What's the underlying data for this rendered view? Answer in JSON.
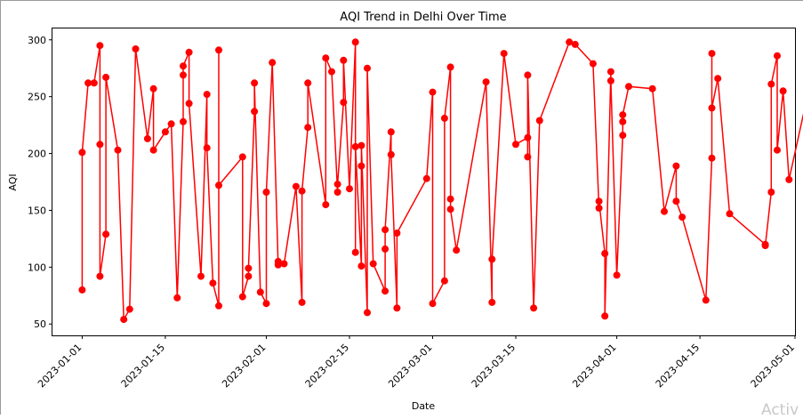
{
  "watermark": "Activ",
  "chart_data": {
    "type": "line",
    "title": "AQI Trend in Delhi Over Time",
    "xlabel": "Date",
    "ylabel": "AQI",
    "line_color": "#ff0000",
    "marker": "circle",
    "grid": false,
    "x_range": [
      "2022-12-27",
      "2023-05-01"
    ],
    "ylim": [
      40,
      310
    ],
    "x_ticks": [
      "2023-01-01",
      "2023-01-15",
      "2023-02-01",
      "2023-02-15",
      "2023-03-01",
      "2023-03-15",
      "2023-04-01",
      "2023-04-15",
      "2023-05-01"
    ],
    "y_ticks": [
      50,
      100,
      150,
      200,
      250,
      300
    ],
    "x": [
      "2023-01-01",
      "2023-01-01",
      "2023-01-02",
      "2023-01-03",
      "2023-01-04",
      "2023-01-04",
      "2023-01-04",
      "2023-01-05",
      "2023-01-05",
      "2023-01-07",
      "2023-01-08",
      "2023-01-09",
      "2023-01-10",
      "2023-01-12",
      "2023-01-13",
      "2023-01-13",
      "2023-01-15",
      "2023-01-16",
      "2023-01-17",
      "2023-01-18",
      "2023-01-18",
      "2023-01-18",
      "2023-01-19",
      "2023-01-19",
      "2023-01-21",
      "2023-01-22",
      "2023-01-22",
      "2023-01-23",
      "2023-01-24",
      "2023-01-24",
      "2023-01-24",
      "2023-01-28",
      "2023-01-28",
      "2023-01-29",
      "2023-01-29",
      "2023-01-30",
      "2023-01-30",
      "2023-01-31",
      "2023-02-01",
      "2023-02-01",
      "2023-02-02",
      "2023-02-03",
      "2023-02-03",
      "2023-02-04",
      "2023-02-06",
      "2023-02-07",
      "2023-02-07",
      "2023-02-08",
      "2023-02-08",
      "2023-02-11",
      "2023-02-11",
      "2023-02-12",
      "2023-02-13",
      "2023-02-13",
      "2023-02-14",
      "2023-02-14",
      "2023-02-15",
      "2023-02-16",
      "2023-02-16",
      "2023-02-16",
      "2023-02-17",
      "2023-02-17",
      "2023-02-17",
      "2023-02-18",
      "2023-02-18",
      "2023-02-19",
      "2023-02-21",
      "2023-02-21",
      "2023-02-21",
      "2023-02-22",
      "2023-02-22",
      "2023-02-23",
      "2023-02-23",
      "2023-02-28",
      "2023-02-29",
      "2023-02-29",
      "2023-03-03",
      "2023-03-03",
      "2023-03-04",
      "2023-03-04",
      "2023-03-04",
      "2023-03-05",
      "2023-03-10",
      "2023-03-11",
      "2023-03-11",
      "2023-03-13",
      "2023-03-15",
      "2023-03-17",
      "2023-03-17",
      "2023-03-17",
      "2023-03-18",
      "2023-03-19",
      "2023-03-24",
      "2023-03-25",
      "2023-03-28",
      "2023-03-29",
      "2023-03-29",
      "2023-03-30",
      "2023-03-30",
      "2023-03-31",
      "2023-03-31",
      "2023-04-01",
      "2023-04-02",
      "2023-04-02",
      "2023-04-02",
      "2023-04-03",
      "2023-04-07",
      "2023-04-09",
      "2023-04-11",
      "2023-04-11",
      "2023-04-12",
      "2023-04-16",
      "2023-04-17",
      "2023-04-17",
      "2023-04-17",
      "2023-04-18",
      "2023-04-20",
      "2023-04-26",
      "2023-04-26",
      "2023-04-27",
      "2023-04-27",
      "2023-04-28",
      "2023-04-28",
      "2023-04-29",
      "2023-04-30",
      "2023-05-04",
      "2023-05-06"
    ],
    "y": [
      80,
      201,
      262,
      262,
      295,
      208,
      92,
      129,
      267,
      203,
      54,
      63,
      292,
      213,
      257,
      203,
      219,
      226,
      73,
      228,
      269,
      277,
      289,
      244,
      92,
      252,
      205,
      86,
      66,
      291,
      172,
      197,
      74,
      92,
      99,
      237,
      262,
      78,
      68,
      166,
      280,
      102,
      105,
      103,
      171,
      69,
      167,
      223,
      262,
      155,
      284,
      272,
      166,
      173,
      245,
      282,
      169,
      298,
      113,
      206,
      101,
      189,
      207,
      60,
      275,
      103,
      79,
      116,
      133,
      219,
      199,
      64,
      130,
      178,
      254,
      68,
      88,
      231,
      276,
      160,
      151,
      115,
      263,
      69,
      107,
      288,
      208,
      214,
      197,
      269,
      64,
      229,
      298,
      296,
      279,
      152,
      158,
      112,
      57,
      272,
      264,
      93,
      216,
      228,
      234,
      259,
      257,
      149,
      189,
      158,
      144,
      71,
      196,
      288,
      240,
      266,
      147,
      120,
      119,
      166,
      261,
      286,
      203,
      255,
      177,
      272,
      200
    ]
  }
}
